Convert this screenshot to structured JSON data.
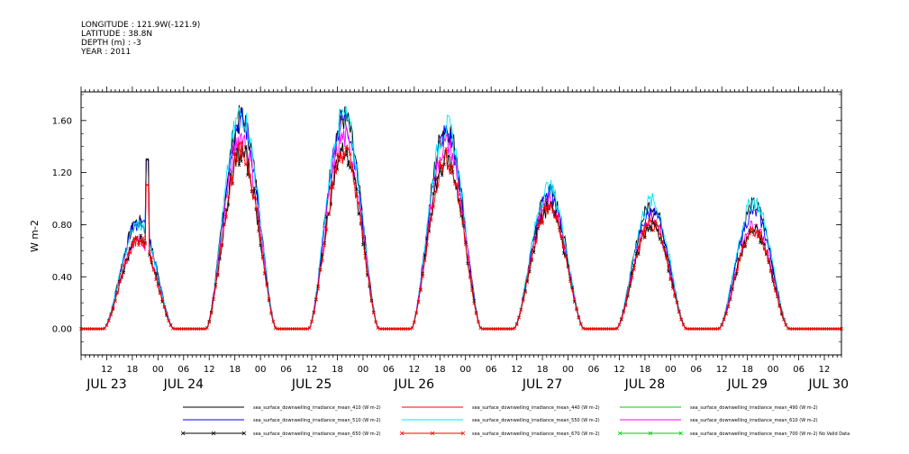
{
  "header": {
    "lines": [
      "LONGITUDE : 121.9W(-121.9)",
      "LATITUDE : 38.8N",
      "DEPTH (m) : -3",
      "YEAR : 2011"
    ]
  },
  "chart_data": {
    "type": "line",
    "ylabel": "W m-2",
    "ylim": [
      -0.2,
      1.82
    ],
    "yticks": [
      "0.00",
      "0.40",
      "0.80",
      "1.20",
      "1.60"
    ],
    "ytick_values": [
      0,
      0.4,
      0.8,
      1.2,
      1.6
    ],
    "xlim_hours": [
      6,
      184
    ],
    "hour_ticks": [
      {
        "h": 12,
        "label": "12"
      },
      {
        "h": 18,
        "label": "18"
      },
      {
        "h": 24,
        "label": "00"
      },
      {
        "h": 30,
        "label": "06"
      },
      {
        "h": 36,
        "label": "12"
      },
      {
        "h": 42,
        "label": "18"
      },
      {
        "h": 48,
        "label": "00"
      },
      {
        "h": 54,
        "label": "06"
      },
      {
        "h": 60,
        "label": "12"
      },
      {
        "h": 66,
        "label": "18"
      },
      {
        "h": 72,
        "label": "00"
      },
      {
        "h": 78,
        "label": "06"
      },
      {
        "h": 84,
        "label": "12"
      },
      {
        "h": 90,
        "label": "18"
      },
      {
        "h": 96,
        "label": "00"
      },
      {
        "h": 102,
        "label": "06"
      },
      {
        "h": 108,
        "label": "12"
      },
      {
        "h": 114,
        "label": "18"
      },
      {
        "h": 120,
        "label": "00"
      },
      {
        "h": 126,
        "label": "06"
      },
      {
        "h": 132,
        "label": "12"
      },
      {
        "h": 138,
        "label": "18"
      },
      {
        "h": 144,
        "label": "00"
      },
      {
        "h": 150,
        "label": "06"
      },
      {
        "h": 156,
        "label": "12"
      },
      {
        "h": 162,
        "label": "18"
      },
      {
        "h": 168,
        "label": "00"
      },
      {
        "h": 174,
        "label": "06"
      },
      {
        "h": 180,
        "label": "12"
      }
    ],
    "date_labels": [
      {
        "h": 12,
        "label": "JUL 23"
      },
      {
        "h": 30,
        "label": "JUL 24"
      },
      {
        "h": 60,
        "label": "JUL 25"
      },
      {
        "h": 84,
        "label": "JUL 26"
      },
      {
        "h": 114,
        "label": "JUL 27"
      },
      {
        "h": 138,
        "label": "JUL 28"
      },
      {
        "h": 162,
        "label": "JUL 29"
      },
      {
        "h": 181,
        "label": "JUL 30"
      }
    ],
    "day_peaks": [
      {
        "center_h": 19.5,
        "peaks": {
          "s410": 0.82,
          "s510": 0.82,
          "s550": 0.8,
          "s670": 0.68
        },
        "spike_h": 21.5,
        "spike_val": 1.3
      },
      {
        "center_h": 43.5,
        "peaks": {
          "s410": 1.62,
          "s510": 1.6,
          "s550": 1.65,
          "s610": 1.48,
          "s670": 1.35
        }
      },
      {
        "center_h": 67.5,
        "peaks": {
          "s410": 1.62,
          "s510": 1.6,
          "s550": 1.63,
          "s610": 1.47,
          "s670": 1.36
        }
      },
      {
        "center_h": 91.5,
        "peaks": {
          "s410": 1.55,
          "s510": 1.5,
          "s550": 1.55,
          "s610": 1.42,
          "s670": 1.3
        }
      },
      {
        "center_h": 115.5,
        "peaks": {
          "s410": 1.05,
          "s510": 1.02,
          "s550": 1.08,
          "s610": 0.98,
          "s670": 0.92
        }
      },
      {
        "center_h": 139.5,
        "peaks": {
          "s410": 0.95,
          "s510": 0.9,
          "s550": 0.98,
          "s610": 0.85,
          "s670": 0.8
        }
      },
      {
        "center_h": 163.5,
        "peaks": {
          "s410": 0.95,
          "s510": 0.9,
          "s550": 0.98,
          "s610": 0.8,
          "s670": 0.75
        }
      }
    ],
    "series": [
      {
        "key": "s410",
        "name": "sea_surface_downwelling_irradiance_mean_410 (W m-2)",
        "color": "#000000",
        "marker": false
      },
      {
        "key": "s440",
        "name": "sea_surface_downwelling_irradiance_mean_440 (W m-2)",
        "color": "#ff0000",
        "marker": false
      },
      {
        "key": "s490",
        "name": "sea_surface_downwelling_irradiance_mean_490 (W m-2)",
        "color": "#00cc00",
        "marker": false
      },
      {
        "key": "s510",
        "name": "sea_surface_downwelling_irradiance_mean_510 (W m-2)",
        "color": "#0000ff",
        "marker": false
      },
      {
        "key": "s550",
        "name": "sea_surface_downwelling_irradiance_mean_550 (W m-2)",
        "color": "#00e5ff",
        "marker": false
      },
      {
        "key": "s610",
        "name": "sea_surface_downwelling_irradiance_mean_610 (W m-2)",
        "color": "#ff00ff",
        "marker": false
      },
      {
        "key": "s650",
        "name": "sea_surface_downwelling_irradiance_mean_650 (W m-2)",
        "color": "#000000",
        "marker": true
      },
      {
        "key": "s670",
        "name": "sea_surface_downwelling_irradiance_mean_670 (W m-2)",
        "color": "#ff0000",
        "marker": true
      },
      {
        "key": "s700",
        "name": "sea_surface_downwelling_irradiance_mean_700 (W m-2) No Valid Data",
        "color": "#00cc00",
        "marker": true
      }
    ]
  }
}
